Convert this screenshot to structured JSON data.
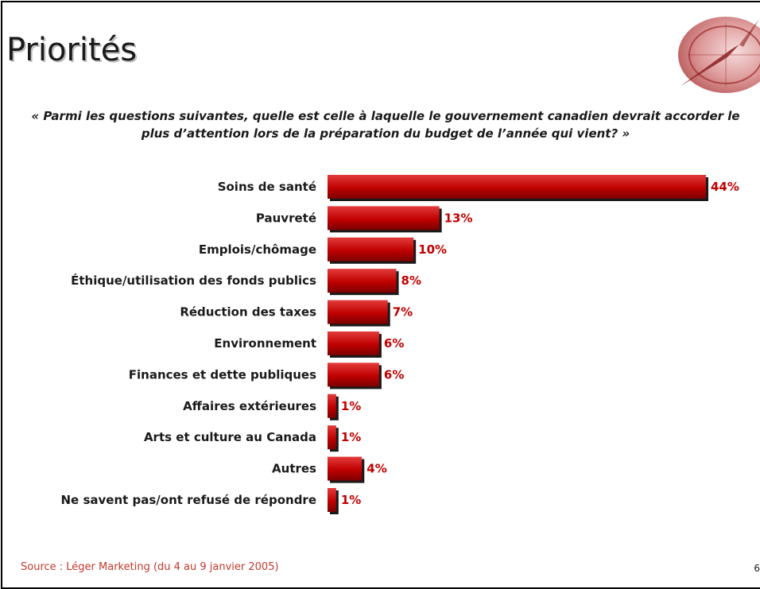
{
  "slide": {
    "title": "Priorités",
    "question": "« Parmi les questions suivantes, quelle est celle à laquelle le gouvernement canadien devrait accorder le plus d’attention lors de la préparation du budget de l’année qui vient? »",
    "source": "Source : Léger Marketing (du 4 au 9 janvier 2005)",
    "page_number": "6",
    "logo_icon": "compass-icon"
  },
  "colors": {
    "bar": "#c00000",
    "bar_highlight": "#e23b3b",
    "value_label": "#c00000",
    "source_text": "#c0392b"
  },
  "chart_data": {
    "type": "bar",
    "orientation": "horizontal",
    "categories": [
      "Soins de santé",
      "Pauvreté",
      "Emplois/chômage",
      "Éthique/utilisation des fonds publics",
      "Réduction des taxes",
      "Environnement",
      "Finances et dette publiques",
      "Affaires extérieures",
      "Arts et culture au Canada",
      "Autres",
      "Ne savent pas/ont refusé de répondre"
    ],
    "values": [
      44,
      13,
      10,
      8,
      7,
      6,
      6,
      1,
      1,
      4,
      1
    ],
    "value_labels": [
      "44%",
      "13%",
      "10%",
      "8%",
      "7%",
      "6%",
      "6%",
      "1%",
      "1%",
      "4%",
      "1%"
    ],
    "unit": "%",
    "xlim": [
      0,
      44
    ],
    "grid": false,
    "legend": "none"
  }
}
